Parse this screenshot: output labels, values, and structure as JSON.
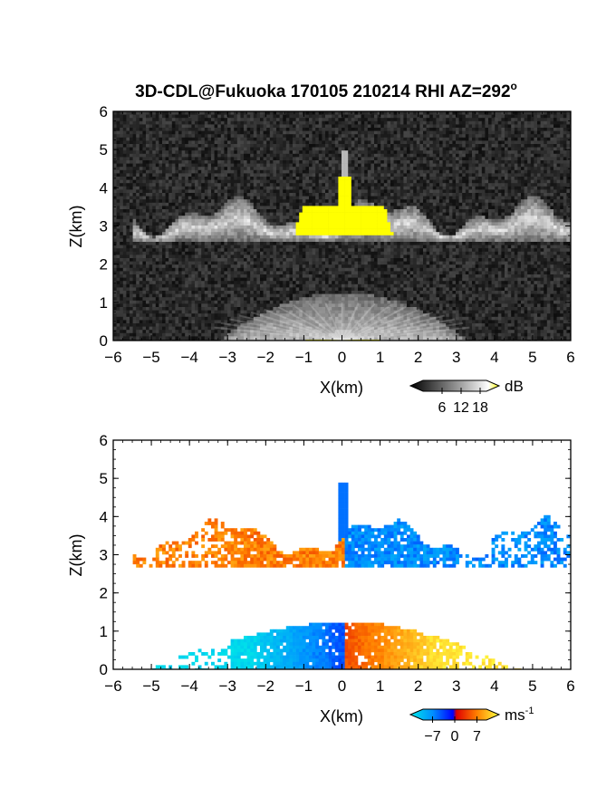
{
  "title": "3D-CDL@Fukuoka 170105 210214 RHI AZ=292",
  "title_sup": "o",
  "chart_data": [
    {
      "type": "heatmap",
      "quantity": "backscatter intensity",
      "xlabel": "X(km)",
      "ylabel": "Z(km)",
      "xlim": [
        -6,
        6
      ],
      "ylim": [
        0,
        6
      ],
      "xticks": [
        "-6",
        "-5",
        "-4",
        "-3",
        "-2",
        "-1",
        "0",
        "1",
        "2",
        "3",
        "4",
        "5",
        "6"
      ],
      "yticks": [
        "0",
        "1",
        "2",
        "3",
        "4",
        "5",
        "6"
      ],
      "colorbar": {
        "unit": "dB",
        "ticks": [
          "6",
          "12",
          "18"
        ],
        "tick_values": [
          6,
          12,
          18
        ],
        "range": [
          0,
          20
        ],
        "colors": [
          "#000000",
          "#555555",
          "#aaaaaa",
          "#ffffff",
          "#ffff00"
        ]
      },
      "layers": [
        {
          "feature": "cloud layer",
          "x_range": [
            -5.5,
            6
          ],
          "z_range": [
            2.6,
            3.7
          ],
          "typical_dB": 10
        },
        {
          "feature": "boundary layer aerosol",
          "x_range": [
            -3,
            3
          ],
          "z_range": [
            0,
            1.3
          ],
          "typical_dB": 8
        },
        {
          "feature": "strong echo near zenith",
          "x_range": [
            -1.2,
            1.5
          ],
          "z_range": [
            2.8,
            4.3
          ],
          "typical_dB": 20
        },
        {
          "feature": "background noise",
          "x_range": [
            -6,
            6
          ],
          "z_range": [
            0,
            6
          ],
          "typical_dB": 3
        }
      ]
    },
    {
      "type": "heatmap",
      "quantity": "Doppler velocity",
      "xlabel": "X(km)",
      "ylabel": "Z(km)",
      "xlim": [
        -6,
        6
      ],
      "ylim": [
        0,
        6
      ],
      "xticks": [
        "-6",
        "-5",
        "-4",
        "-3",
        "-2",
        "-1",
        "0",
        "1",
        "2",
        "3",
        "4",
        "5",
        "6"
      ],
      "yticks": [
        "0",
        "1",
        "2",
        "3",
        "4",
        "5",
        "6"
      ],
      "colorbar": {
        "unit": "ms",
        "unit_sup": "-1",
        "ticks": [
          "-7",
          "0",
          "7"
        ],
        "tick_values": [
          -7,
          0,
          7
        ],
        "range": [
          -10,
          10
        ],
        "colors": [
          "#00e8e8",
          "#0090ff",
          "#0000ff",
          "#e00000",
          "#ff8000",
          "#ffff40"
        ]
      },
      "layers": [
        {
          "feature": "cloud layer",
          "x_range": [
            -5.5,
            0
          ],
          "z_range": [
            2.8,
            4.2
          ],
          "velocity": 5
        },
        {
          "feature": "cloud layer",
          "x_range": [
            0,
            5.9
          ],
          "z_range": [
            2.6,
            4.9
          ],
          "velocity": -5
        },
        {
          "feature": "boundary layer",
          "x_range": [
            -5.3,
            0
          ],
          "z_range": [
            0,
            1.3
          ],
          "velocity": -7
        },
        {
          "feature": "boundary layer",
          "x_range": [
            0,
            4.7
          ],
          "z_range": [
            0,
            1.3
          ],
          "velocity": 6
        }
      ]
    }
  ]
}
